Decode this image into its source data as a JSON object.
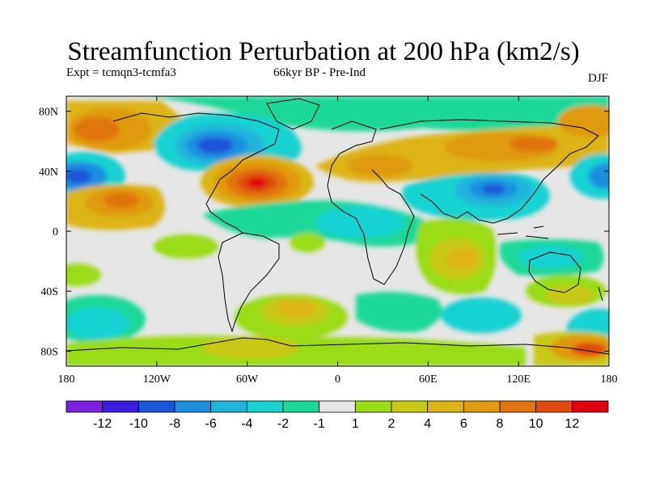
{
  "title": "Streamfunction Perturbation at 200 hPa (km2/s)",
  "left_label": "Expt = tcmqn3-tcmfa3",
  "center_label": "66kyr BP - Pre-Ind",
  "right_label": "DJF",
  "x_ticks": [
    "180",
    "120W",
    "60W",
    "0",
    "60E",
    "120E",
    "180"
  ],
  "y_ticks": [
    "80N",
    "40N",
    "0",
    "40S",
    "80S"
  ],
  "colorbar": {
    "colors": [
      "#7b1fe0",
      "#3c1de0",
      "#1b55d8",
      "#1f8fe0",
      "#20b4dc",
      "#19d2d0",
      "#1ad898",
      "#e6e6e6",
      "#9adc18",
      "#c8c818",
      "#dcb418",
      "#e09a10",
      "#e07410",
      "#e04a10",
      "#e00010"
    ],
    "labels": [
      "-12",
      "-10",
      "-8",
      "-6",
      "-4",
      "-2",
      "-1",
      "1",
      "2",
      "4",
      "6",
      "8",
      "10",
      "12"
    ]
  },
  "colors": {
    "background": "#ffffff",
    "neutral": "#e6e6e6",
    "coast": "#000000"
  }
}
